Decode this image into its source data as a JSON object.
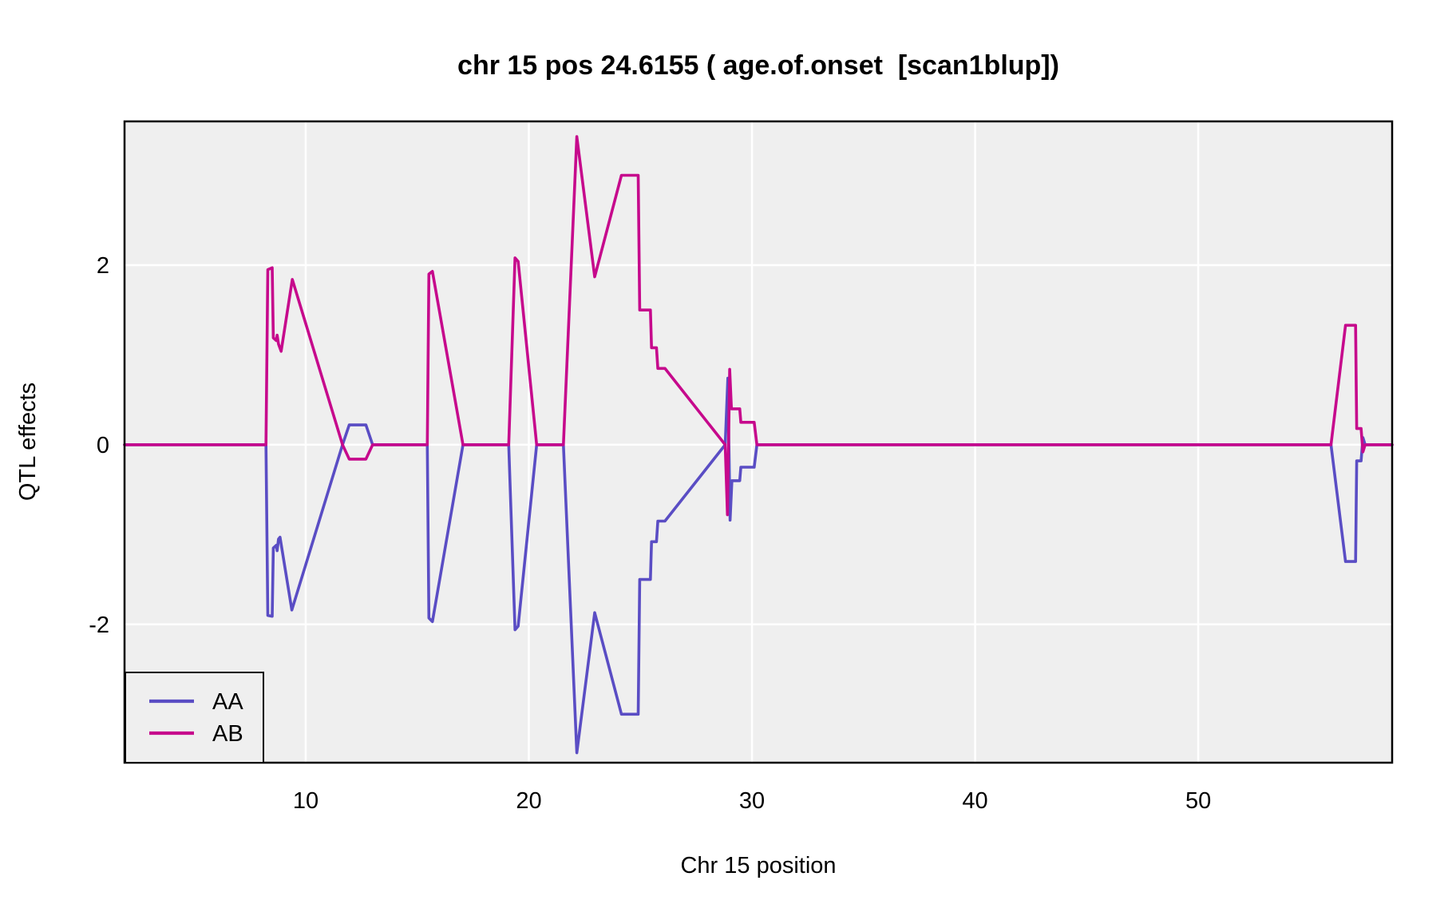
{
  "plot": {
    "panel_bg": "#efefef",
    "grid_color": "#ffffff",
    "border_color": "#000000",
    "text_color": "#000000",
    "line_width": 3.6,
    "grid_width": 2.5
  },
  "legend": {
    "items": [
      {
        "label": "AA",
        "color": "#5a4dc4"
      },
      {
        "label": "AB",
        "color": "#c6098c"
      }
    ]
  },
  "chart_data": {
    "type": "line",
    "title": "chr 15 pos 24.6155 ( age.of.onset  [scan1blup])",
    "xlabel": "Chr 15 position",
    "ylabel": "QTL effects",
    "xlim": [
      1.88,
      58.69
    ],
    "ylim": [
      -3.54,
      3.6
    ],
    "x_ticks": [
      10,
      20,
      30,
      40,
      50
    ],
    "y_ticks": [
      -2,
      0,
      2
    ],
    "grid": true,
    "legend_position": "bottom-left",
    "series": [
      {
        "name": "AA",
        "color": "#5a4dc4",
        "points": [
          [
            1.88,
            0
          ],
          [
            8.22,
            0
          ],
          [
            8.3,
            -1.9
          ],
          [
            8.5,
            -1.91
          ],
          [
            8.55,
            -1.15
          ],
          [
            8.68,
            -1.12
          ],
          [
            8.72,
            -1.18
          ],
          [
            8.78,
            -1.05
          ],
          [
            8.85,
            -1.03
          ],
          [
            9.38,
            -1.84
          ],
          [
            11.65,
            0
          ],
          [
            11.95,
            0.22
          ],
          [
            12.7,
            0.22
          ],
          [
            13.0,
            0
          ],
          [
            15.45,
            0
          ],
          [
            15.52,
            -1.93
          ],
          [
            15.68,
            -1.97
          ],
          [
            17.05,
            0
          ],
          [
            19.1,
            0
          ],
          [
            19.38,
            -2.06
          ],
          [
            19.52,
            -2.02
          ],
          [
            20.35,
            0
          ],
          [
            21.55,
            0
          ],
          [
            22.15,
            -3.43
          ],
          [
            22.95,
            -1.87
          ],
          [
            24.15,
            -3.0
          ],
          [
            24.9,
            -3.0
          ],
          [
            24.97,
            -1.5
          ],
          [
            25.45,
            -1.5
          ],
          [
            25.5,
            -1.08
          ],
          [
            25.72,
            -1.08
          ],
          [
            25.78,
            -0.85
          ],
          [
            26.1,
            -0.85
          ],
          [
            28.8,
            0
          ],
          [
            28.92,
            0.74
          ],
          [
            29.02,
            -0.84
          ],
          [
            29.1,
            -0.4
          ],
          [
            29.45,
            -0.4
          ],
          [
            29.5,
            -0.25
          ],
          [
            30.1,
            -0.25
          ],
          [
            30.22,
            0
          ],
          [
            55.95,
            0
          ],
          [
            56.6,
            -1.3
          ],
          [
            57.05,
            -1.3
          ],
          [
            57.1,
            -0.18
          ],
          [
            57.3,
            -0.18
          ],
          [
            57.38,
            0.08
          ],
          [
            57.48,
            0
          ],
          [
            58.69,
            0
          ]
        ]
      },
      {
        "name": "AB",
        "color": "#c6098c",
        "points": [
          [
            1.88,
            0
          ],
          [
            8.22,
            0
          ],
          [
            8.3,
            1.95
          ],
          [
            8.5,
            1.97
          ],
          [
            8.55,
            1.19
          ],
          [
            8.68,
            1.16
          ],
          [
            8.72,
            1.22
          ],
          [
            8.78,
            1.12
          ],
          [
            8.9,
            1.04
          ],
          [
            9.4,
            1.84
          ],
          [
            11.65,
            0
          ],
          [
            11.95,
            -0.16
          ],
          [
            12.7,
            -0.16
          ],
          [
            13.0,
            0
          ],
          [
            15.45,
            0
          ],
          [
            15.52,
            1.9
          ],
          [
            15.68,
            1.93
          ],
          [
            17.05,
            0
          ],
          [
            19.1,
            0
          ],
          [
            19.38,
            2.08
          ],
          [
            19.52,
            2.04
          ],
          [
            20.35,
            0
          ],
          [
            21.55,
            0
          ],
          [
            22.15,
            3.43
          ],
          [
            22.95,
            1.87
          ],
          [
            24.15,
            3.0
          ],
          [
            24.9,
            3.0
          ],
          [
            24.97,
            1.5
          ],
          [
            25.45,
            1.5
          ],
          [
            25.5,
            1.08
          ],
          [
            25.72,
            1.08
          ],
          [
            25.78,
            0.85
          ],
          [
            26.1,
            0.85
          ],
          [
            28.8,
            0
          ],
          [
            28.9,
            -0.78
          ],
          [
            29.0,
            0.84
          ],
          [
            29.08,
            0.4
          ],
          [
            29.45,
            0.4
          ],
          [
            29.5,
            0.25
          ],
          [
            30.1,
            0.25
          ],
          [
            30.22,
            0
          ],
          [
            55.95,
            0
          ],
          [
            56.6,
            1.33
          ],
          [
            57.05,
            1.33
          ],
          [
            57.1,
            0.18
          ],
          [
            57.3,
            0.18
          ],
          [
            57.38,
            -0.08
          ],
          [
            57.48,
            0
          ],
          [
            58.69,
            0
          ]
        ]
      }
    ]
  }
}
